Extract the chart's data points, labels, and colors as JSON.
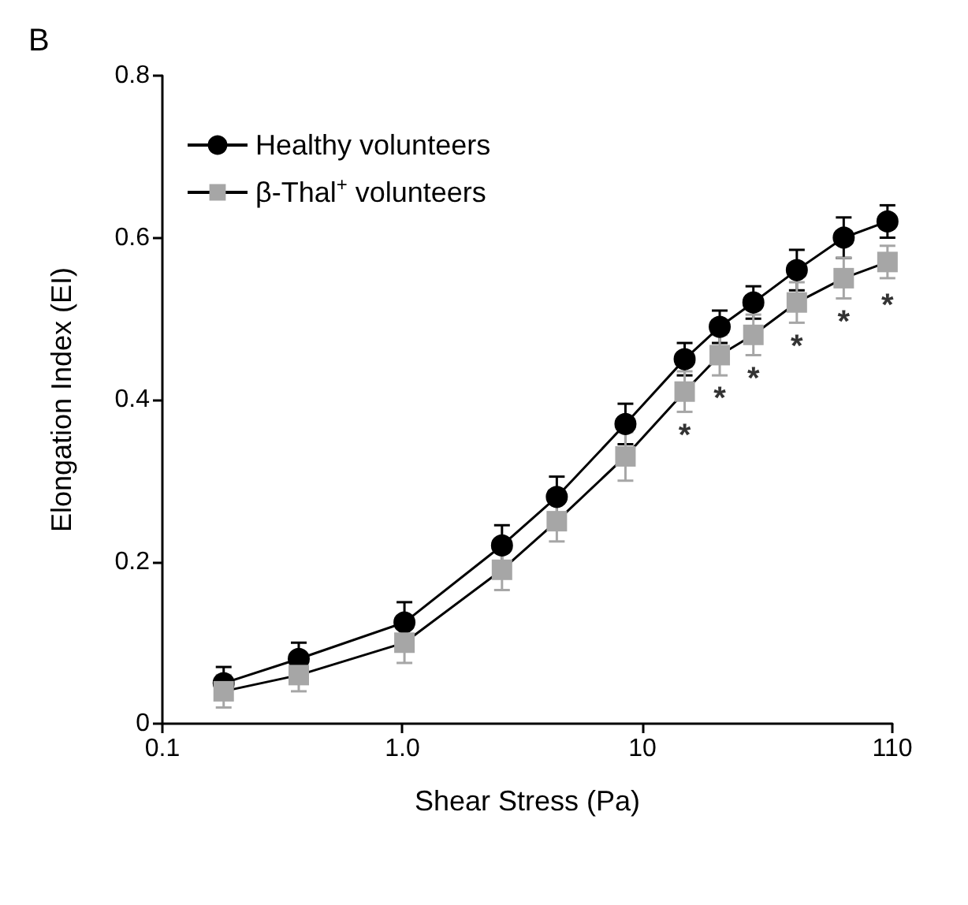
{
  "chart_data": {
    "type": "line",
    "xlabel": "Shear Stress (Pa)",
    "ylabel": "Elongation Index (EI)",
    "x": [
      0.18,
      0.37,
      1.02,
      2.6,
      4.4,
      8.5,
      15,
      21,
      29,
      44,
      69,
      105
    ],
    "series": [
      {
        "name": "Healthy volunteers",
        "color": "#000000",
        "marker": "circle",
        "values": [
          0.05,
          0.08,
          0.125,
          0.22,
          0.28,
          0.37,
          0.45,
          0.49,
          0.52,
          0.56,
          0.6,
          0.62
        ],
        "errors": [
          0.02,
          0.02,
          0.025,
          0.025,
          0.025,
          0.025,
          0.02,
          0.02,
          0.02,
          0.025,
          0.025,
          0.02
        ]
      },
      {
        "name": "β-Thal$^{+}$ volunteers",
        "color": "#a6a6a6",
        "marker": "square",
        "values": [
          0.04,
          0.06,
          0.1,
          0.19,
          0.25,
          0.33,
          0.41,
          0.455,
          0.48,
          0.52,
          0.55,
          0.57
        ],
        "errors": [
          0.02,
          0.02,
          0.025,
          0.025,
          0.025,
          0.03,
          0.025,
          0.025,
          0.025,
          0.025,
          0.025,
          0.02
        ]
      }
    ],
    "xlim": [
      0.1,
      110
    ],
    "xticks": [
      0.1,
      {
        "value": 1,
        "label": "1.0"
      },
      10,
      110
    ],
    "log": "x",
    "ylim": [
      0,
      0.8
    ],
    "yticks": [
      0,
      0.2,
      0.4,
      0.6,
      0.8
    ],
    "grid": false,
    "legend": "top left",
    "line_style": "solid",
    "annotations": [
      "B",
      {
        "text": "*",
        "x": 15,
        "y": 0.41
      },
      {
        "text": "*",
        "x": 21,
        "y": 0.455
      },
      {
        "text": "*",
        "x": 29,
        "y": 0.48
      },
      {
        "text": "*",
        "x": 44,
        "y": 0.52
      },
      {
        "text": "*",
        "x": 69,
        "y": 0.55
      },
      {
        "text": "*",
        "x": 105,
        "y": 0.57
      }
    ]
  }
}
